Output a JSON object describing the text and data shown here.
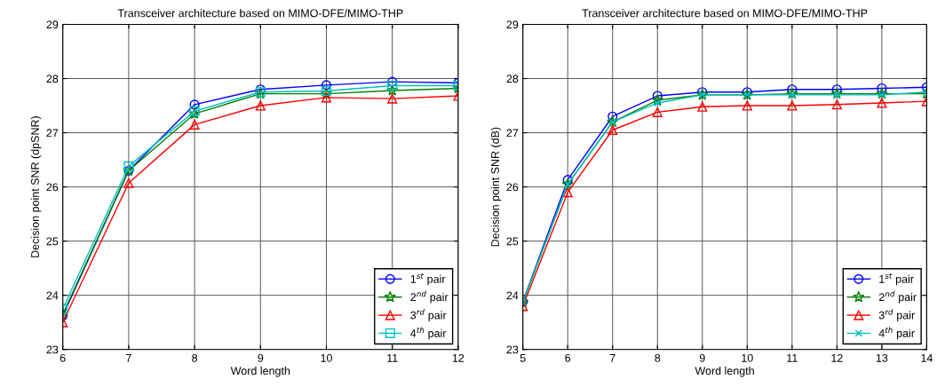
{
  "chart_data": [
    {
      "type": "line",
      "title": "Transceiver architecture based on MIMO-DFE/MIMO-THP",
      "xlabel": "Word length",
      "ylabel": "Decision point SNR (dpSNR)",
      "x": [
        6,
        7,
        8,
        9,
        10,
        11,
        12
      ],
      "xlim": [
        6,
        12
      ],
      "xticks": [
        6,
        7,
        8,
        9,
        10,
        11,
        12
      ],
      "ylim": [
        23,
        29
      ],
      "yticks": [
        23,
        24,
        25,
        26,
        27,
        28,
        29
      ],
      "grid": true,
      "legend": "bottom right",
      "line_style": "solid",
      "series": [
        {
          "name": "1$^{st}$ pair",
          "color": "#0000ff",
          "marker": "circle",
          "values": [
            23.62,
            26.3,
            27.52,
            27.8,
            27.88,
            27.94,
            27.92
          ]
        },
        {
          "name": "2$^{nd}$ pair",
          "color": "#008000",
          "marker": "star",
          "values": [
            23.65,
            26.3,
            27.35,
            27.72,
            27.72,
            27.78,
            27.82
          ]
        },
        {
          "name": "3$^{rd}$ pair",
          "color": "#ff0000",
          "marker": "triangle",
          "values": [
            23.5,
            26.07,
            27.15,
            27.5,
            27.65,
            27.63,
            27.68
          ]
        },
        {
          "name": "4$^{th}$ pair",
          "color": "#00bfbf",
          "marker": "square",
          "values": [
            23.75,
            26.38,
            27.4,
            27.75,
            27.77,
            27.87,
            27.87
          ]
        }
      ]
    },
    {
      "type": "line",
      "title": "Transceiver architecture based on MIMO-DFE/MIMO-THP",
      "xlabel": "Word length",
      "ylabel": "Decision point SNR (dB)",
      "x": [
        5,
        6,
        7,
        8,
        9,
        10,
        11,
        12,
        13,
        14
      ],
      "xlim": [
        5,
        14
      ],
      "xticks": [
        5,
        6,
        7,
        8,
        9,
        10,
        11,
        12,
        13,
        14
      ],
      "ylim": [
        23,
        29
      ],
      "yticks": [
        23,
        24,
        25,
        26,
        27,
        28,
        29
      ],
      "grid": true,
      "legend": "bottom right",
      "line_style": "solid",
      "series": [
        {
          "name": "1$^{st}$ pair",
          "color": "#0000ff",
          "marker": "circle",
          "values": [
            23.88,
            26.13,
            27.3,
            27.68,
            27.75,
            27.75,
            27.8,
            27.8,
            27.82,
            27.84
          ]
        },
        {
          "name": "2$^{nd}$ pair",
          "color": "#008000",
          "marker": "star",
          "values": [
            23.87,
            26.05,
            27.2,
            27.6,
            27.7,
            27.7,
            27.72,
            27.72,
            27.72,
            27.72
          ]
        },
        {
          "name": "3$^{rd}$ pair",
          "color": "#ff0000",
          "marker": "triangle",
          "values": [
            23.8,
            25.9,
            27.05,
            27.38,
            27.48,
            27.5,
            27.5,
            27.52,
            27.55,
            27.58
          ]
        },
        {
          "name": "4$^{th}$ pair",
          "color": "#00bfbf",
          "marker": "cross",
          "values": [
            23.87,
            26.05,
            27.2,
            27.55,
            27.7,
            27.7,
            27.7,
            27.7,
            27.7,
            27.75
          ]
        }
      ]
    }
  ]
}
